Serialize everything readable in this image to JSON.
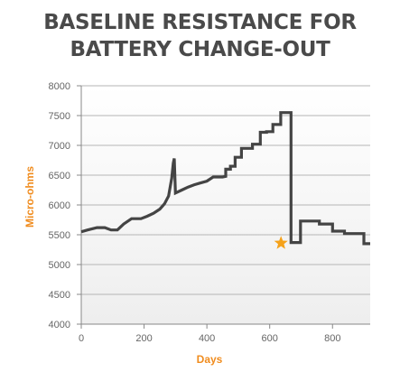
{
  "chart_data": {
    "type": "line",
    "title": [
      "BASELINE RESISTANCE FOR",
      "BATTERY CHANGE-OUT"
    ],
    "xlabel": "Days",
    "ylabel": "Micro-ohms",
    "xlim": [
      0,
      920
    ],
    "ylim": [
      4000,
      8000
    ],
    "x_ticks": [
      "0",
      "200",
      "400",
      "600",
      "800"
    ],
    "x_tick_values": [
      0,
      200,
      400,
      600,
      800
    ],
    "y_ticks": [
      "8000",
      "7500",
      "7000",
      "6500",
      "6000",
      "5500",
      "5000",
      "4500",
      "4000"
    ],
    "y_tick_values": [
      8000,
      7500,
      7000,
      6500,
      6000,
      5500,
      5000,
      4500,
      4000
    ],
    "grid": "horizontal",
    "series": [
      {
        "color": "#444444",
        "x": [
          0,
          20,
          50,
          75,
          95,
          115,
          135,
          160,
          190,
          210,
          230,
          250,
          265,
          278,
          288,
          293,
          296,
          300,
          320,
          340,
          360,
          380,
          400,
          420,
          450,
          460,
          460,
          475,
          475,
          490,
          490,
          510,
          510,
          545,
          545,
          570,
          570,
          590,
          590,
          610,
          610,
          635,
          635,
          650,
          650,
          668,
          668,
          698,
          698,
          758,
          758,
          800,
          800,
          838,
          838,
          900,
          900,
          920
        ],
        "y": [
          5550,
          5580,
          5620,
          5620,
          5580,
          5580,
          5680,
          5770,
          5770,
          5810,
          5860,
          5930,
          6020,
          6150,
          6450,
          6700,
          6780,
          6200,
          6250,
          6300,
          6340,
          6370,
          6400,
          6470,
          6470,
          6480,
          6600,
          6600,
          6650,
          6650,
          6800,
          6800,
          6950,
          6950,
          7020,
          7020,
          7220,
          7220,
          7230,
          7230,
          7350,
          7350,
          7550,
          7550,
          7550,
          7550,
          5370,
          5370,
          5730,
          5730,
          5680,
          5680,
          5560,
          5560,
          5520,
          5520,
          5350,
          5350
        ]
      }
    ],
    "annotations": [
      {
        "type": "star",
        "x": 636,
        "y": 5360,
        "color": "#f5a21b"
      }
    ]
  }
}
